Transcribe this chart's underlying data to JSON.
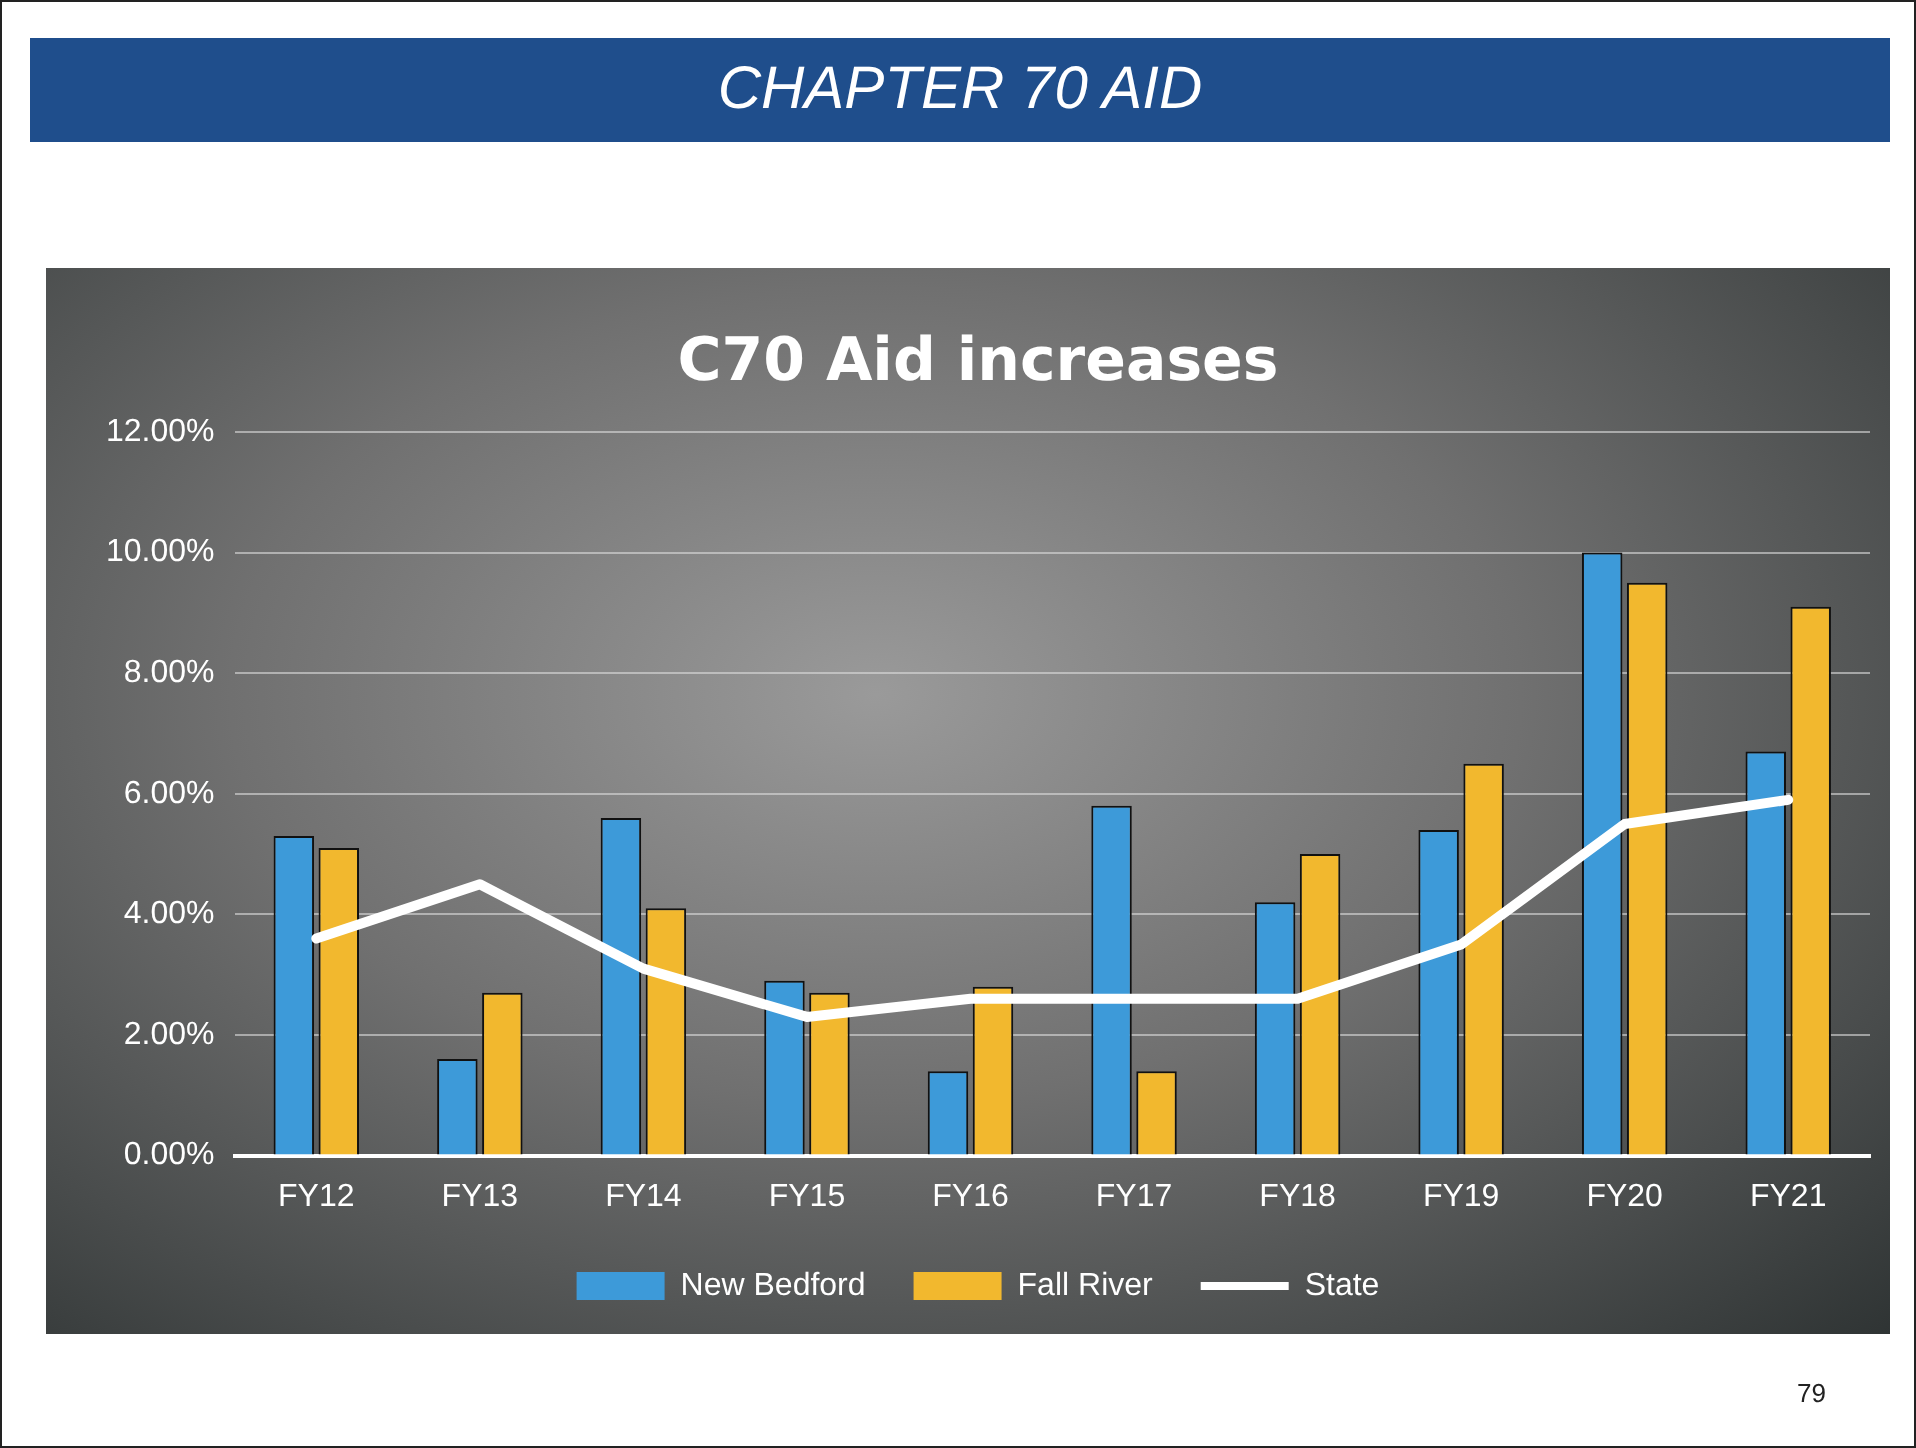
{
  "chart_data": {
    "type": "bar",
    "title": "C70 Aid increases",
    "categories": [
      "FY12",
      "FY13",
      "FY14",
      "FY15",
      "FY16",
      "FY17",
      "FY18",
      "FY19",
      "FY20",
      "FY21"
    ],
    "series": [
      {
        "name": "New Bedford",
        "color": "#3d9ad9",
        "values": [
          5.3,
          1.6,
          5.6,
          2.9,
          1.4,
          5.8,
          4.2,
          5.4,
          10.0,
          6.7
        ]
      },
      {
        "name": "Fall River",
        "color": "#f2b82e",
        "values": [
          5.1,
          2.7,
          4.1,
          2.7,
          2.8,
          1.4,
          5.0,
          6.5,
          9.5,
          9.1
        ]
      },
      {
        "name": "State",
        "type": "line",
        "color": "#ffffff",
        "values": [
          3.6,
          4.5,
          3.1,
          2.3,
          2.6,
          2.6,
          2.6,
          3.5,
          5.5,
          5.9
        ]
      }
    ],
    "ylim": [
      0,
      12
    ],
    "yticks": [
      {
        "value": 0,
        "label": "0.00%"
      },
      {
        "value": 2,
        "label": "2.00%"
      },
      {
        "value": 4,
        "label": "4.00%"
      },
      {
        "value": 6,
        "label": "6.00%"
      },
      {
        "value": 8,
        "label": "8.00%"
      },
      {
        "value": 10,
        "label": "10.00%"
      },
      {
        "value": 12,
        "label": "12.00%"
      }
    ],
    "grid": "y",
    "legend": "bottom",
    "marker": "none",
    "annotations": [
      "CHAPTER 70 AID",
      "79"
    ]
  }
}
